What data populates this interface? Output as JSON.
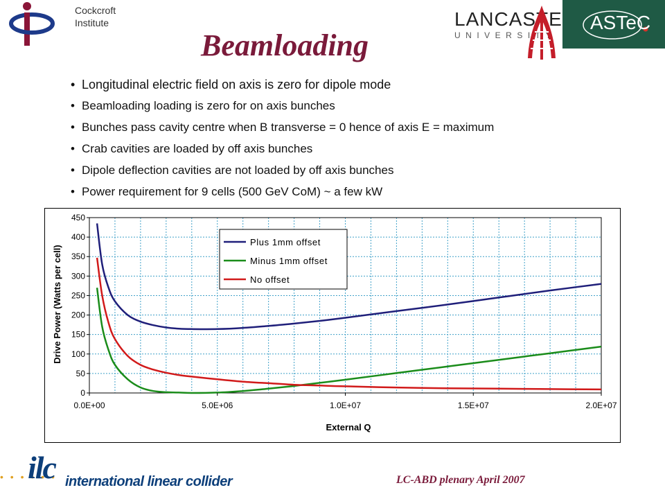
{
  "header": {
    "ci_logo_line1": "Cockcroft",
    "ci_logo_line2": "Institute",
    "lancaster_main": "LANCASTER",
    "lancaster_sub": "UNIVERSITY",
    "astec": "ASTeC",
    "title": "Beamloading"
  },
  "bullets": [
    "Longitudinal electric field on axis is zero for dipole mode",
    "Beamloading loading is zero for on axis bunches",
    "Bunches pass cavity centre when B transverse = 0 hence of axis E = maximum",
    "Crab cavities are loaded by off axis bunches",
    "Dipole deflection cavities are not loaded by off axis bunches",
    "Power requirement for 9 cells (500 GeV CoM) ~ a few kW"
  ],
  "colors": {
    "title": "#7a1a3a",
    "plus_series": "#1f1f7a",
    "minus_series": "#1a8c1a",
    "no_offset_series": "#d11a1a",
    "plot_background": "#ffffff",
    "grid": "#3fa0c8"
  },
  "chart_data": {
    "type": "line",
    "xlabel": "External Q",
    "ylabel": "Drive Power (Watts per cell)",
    "xlim": [
      0,
      20000000
    ],
    "ylim": [
      0,
      450
    ],
    "xticks": [
      "0.0E+00",
      "5.0E+06",
      "1.0E+07",
      "1.5E+07",
      "2.0E+07"
    ],
    "xtick_values": [
      0,
      5000000,
      10000000,
      15000000,
      20000000
    ],
    "yticks": [
      "0",
      "50",
      "100",
      "150",
      "200",
      "250",
      "300",
      "350",
      "400",
      "450"
    ],
    "ytick_values": [
      0,
      50,
      100,
      150,
      200,
      250,
      300,
      350,
      400,
      450
    ],
    "grid": "dotted vertical and horizontal",
    "legend_position": "top-left",
    "series": [
      {
        "name": "Plus 1mm offset",
        "color": "#1f1f7a",
        "x": [
          300000,
          500000,
          750000,
          1000000,
          1500000,
          2000000,
          2500000,
          3000000,
          3500000,
          4000000,
          5000000,
          6000000,
          7000000,
          8000000,
          9000000,
          10000000,
          12000000,
          14000000,
          16000000,
          18000000,
          20000000
        ],
        "y": [
          435,
          330,
          270,
          235,
          200,
          183,
          174,
          168,
          165,
          164,
          164,
          167,
          172,
          178,
          185,
          193,
          210,
          227,
          245,
          263,
          280
        ]
      },
      {
        "name": "Minus 1mm offset",
        "color": "#1a8c1a",
        "x": [
          300000,
          500000,
          750000,
          1000000,
          1500000,
          2000000,
          2500000,
          3000000,
          3500000,
          4000000,
          5000000,
          6000000,
          7000000,
          8000000,
          9000000,
          10000000,
          12000000,
          14000000,
          16000000,
          18000000,
          20000000
        ],
        "y": [
          270,
          170,
          110,
          72,
          35,
          14,
          5,
          2,
          1,
          0,
          1,
          5,
          11,
          18,
          26,
          34,
          51,
          68,
          85,
          102,
          119
        ]
      },
      {
        "name": "No offset",
        "color": "#d11a1a",
        "x": [
          300000,
          500000,
          750000,
          1000000,
          1500000,
          2000000,
          2500000,
          3000000,
          3500000,
          4000000,
          5000000,
          6000000,
          7000000,
          8000000,
          9000000,
          10000000,
          12000000,
          14000000,
          16000000,
          18000000,
          20000000
        ],
        "y": [
          347,
          250,
          180,
          138,
          95,
          72,
          60,
          52,
          46,
          42,
          35,
          29,
          25,
          21,
          19,
          17,
          14,
          12,
          11,
          10,
          9
        ]
      }
    ]
  },
  "footer": {
    "ilc_logo": "ilc",
    "ilc_name": "international linear collider",
    "event": "LC-ABD plenary April 2007"
  }
}
